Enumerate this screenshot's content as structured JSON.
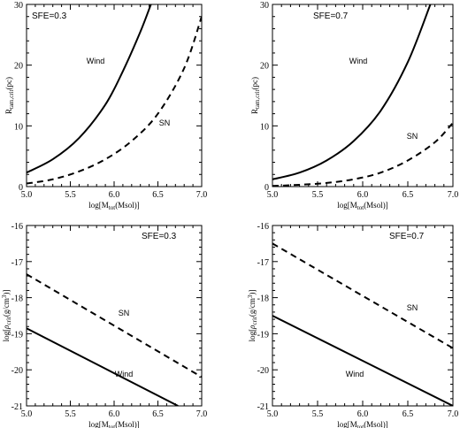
{
  "chart_data": [
    {
      "type": "line",
      "annotation": "SFE=0.3",
      "xlabel": "log[M_tot(Msol)]",
      "ylabel": "R_tam,crit(pc)",
      "xlim": [
        5.0,
        7.0
      ],
      "ylim": [
        0,
        30
      ],
      "xticks": [
        "5.0",
        "5.5",
        "6.0",
        "6.5",
        "7.0"
      ],
      "yticks": [
        "0",
        "10",
        "20",
        "30"
      ],
      "series": [
        {
          "name": "Wind",
          "style": "solid",
          "x": [
            5.0,
            5.3,
            5.6,
            5.9,
            6.1,
            6.3,
            6.42
          ],
          "y": [
            2.3,
            4.5,
            8.0,
            13.5,
            19.0,
            25.5,
            30.0
          ]
        },
        {
          "name": "SN",
          "style": "dashed",
          "x": [
            5.0,
            5.3,
            5.6,
            5.9,
            6.2,
            6.5,
            6.8,
            7.0
          ],
          "y": [
            0.5,
            1.2,
            2.5,
            4.5,
            7.5,
            12.0,
            19.5,
            28.0
          ]
        }
      ]
    },
    {
      "type": "line",
      "annotation": "SFE=0.7",
      "xlabel": "log[M_tot(Msol)]",
      "ylabel": "R_tam,crit(pc)",
      "xlim": [
        5.0,
        7.0
      ],
      "ylim": [
        0,
        30
      ],
      "xticks": [
        "5.0",
        "5.5",
        "6.0",
        "6.5",
        "7.0"
      ],
      "yticks": [
        "0",
        "10",
        "20",
        "30"
      ],
      "series": [
        {
          "name": "Wind",
          "style": "solid",
          "x": [
            5.0,
            5.3,
            5.6,
            5.9,
            6.2,
            6.5,
            6.75
          ],
          "y": [
            1.2,
            2.3,
            4.3,
            7.5,
            12.5,
            20.5,
            30.0
          ]
        },
        {
          "name": "SN",
          "style": "dashed",
          "x": [
            5.0,
            5.3,
            5.6,
            5.9,
            6.2,
            6.5,
            6.8,
            7.0
          ],
          "y": [
            0.1,
            0.3,
            0.6,
            1.2,
            2.3,
            4.3,
            7.3,
            10.5
          ]
        }
      ]
    },
    {
      "type": "line",
      "annotation": "SFE=0.3",
      "xlabel": "log[M_tot(Msol)]",
      "ylabel": "log[ρ_crit(g/cm³)]",
      "xlim": [
        5.0,
        7.0
      ],
      "ylim": [
        -21,
        -16
      ],
      "xticks": [
        "5.0",
        "5.5",
        "6.0",
        "6.5",
        "7.0"
      ],
      "yticks": [
        "-21",
        "-20",
        "-19",
        "-18",
        "-17",
        "-16"
      ],
      "series": [
        {
          "name": "Wind",
          "style": "solid",
          "x": [
            5.0,
            6.73
          ],
          "y": [
            -18.85,
            -21.0
          ]
        },
        {
          "name": "SN",
          "style": "dashed",
          "x": [
            5.0,
            7.0
          ],
          "y": [
            -17.35,
            -20.2
          ]
        }
      ]
    },
    {
      "type": "line",
      "annotation": "SFE=0.7",
      "xlabel": "log[M_tot(Msol)]",
      "ylabel": "log[ρ_crit(g/cm³)]",
      "xlim": [
        5.0,
        7.0
      ],
      "ylim": [
        -21,
        -16
      ],
      "xticks": [
        "5.0",
        "5.5",
        "6.0",
        "6.5",
        "7.0"
      ],
      "yticks": [
        "-21",
        "-20",
        "-19",
        "-18",
        "-17",
        "-16"
      ],
      "series": [
        {
          "name": "Wind",
          "style": "solid",
          "x": [
            5.0,
            7.0
          ],
          "y": [
            -18.5,
            -21.0
          ]
        },
        {
          "name": "SN",
          "style": "dashed",
          "x": [
            5.0,
            7.0
          ],
          "y": [
            -16.5,
            -19.4
          ]
        }
      ]
    }
  ]
}
